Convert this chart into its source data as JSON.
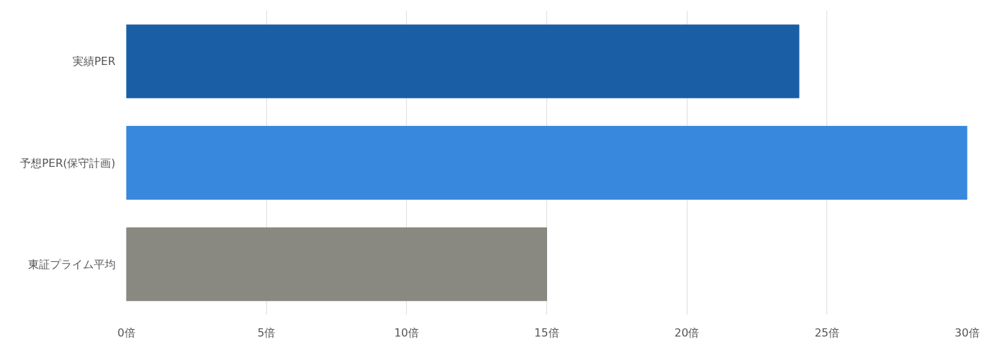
{
  "chart_data": {
    "type": "bar",
    "orientation": "horizontal",
    "categories": [
      "実績PER",
      "予想PER(保守計画)",
      "東証プライム平均"
    ],
    "values": [
      24,
      30,
      15
    ],
    "colors": [
      "#1a5fa5",
      "#3889dd",
      "#898981"
    ],
    "xlim": [
      0,
      30
    ],
    "xticks": [
      {
        "value": 0,
        "label": "0倍"
      },
      {
        "value": 5,
        "label": "5倍"
      },
      {
        "value": 10,
        "label": "10倍"
      },
      {
        "value": 15,
        "label": "15倍"
      },
      {
        "value": 20,
        "label": "20倍"
      },
      {
        "value": 25,
        "label": "25倍"
      },
      {
        "value": 30,
        "label": "30倍"
      }
    ],
    "grid": "x"
  }
}
